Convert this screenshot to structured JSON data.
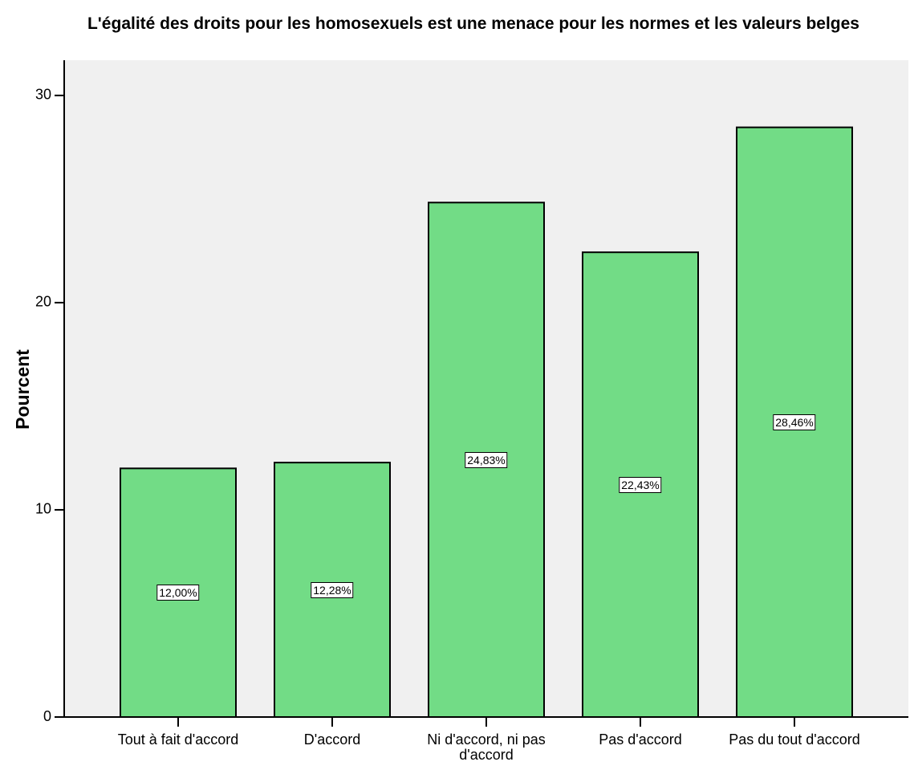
{
  "chart_data": {
    "type": "bar",
    "title": "L'égalité des droits pour les homosexuels est une menace pour les normes et les valeurs belges",
    "ylabel": "Pourcent",
    "categories": [
      "Tout à fait d'accord",
      "D'accord",
      "Ni d'accord, ni pas d'accord",
      "Pas d'accord",
      "Pas du tout d'accord"
    ],
    "values": [
      12.0,
      12.28,
      24.83,
      22.43,
      28.46
    ],
    "value_labels": [
      "12,00%",
      "12,28%",
      "24,83%",
      "22,43%",
      "28,46%"
    ],
    "color": "#72dc86",
    "ylim": [
      0,
      31.7
    ],
    "yticks": [
      0,
      10,
      20,
      30
    ],
    "grid": false
  }
}
